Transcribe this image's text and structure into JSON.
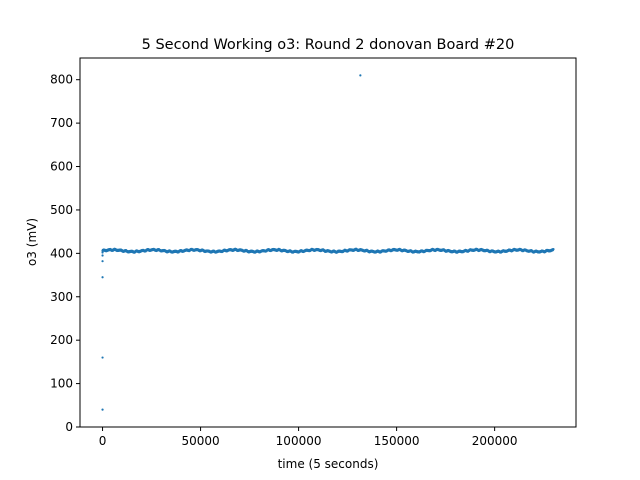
{
  "chart_data": {
    "type": "scatter",
    "title": "5 Second Working o3: Round 2 donovan Board #20",
    "xlabel": "time (5 seconds)",
    "ylabel": "o3 (mV)",
    "xlim": [
      -11500,
      241500
    ],
    "ylim": [
      0,
      850
    ],
    "xticks": [
      0,
      50000,
      100000,
      150000,
      200000
    ],
    "xtick_labels": [
      "0",
      "50000",
      "100000",
      "150000",
      "200000"
    ],
    "yticks": [
      0,
      100,
      200,
      300,
      400,
      500,
      600,
      700,
      800
    ],
    "ytick_labels": [
      "0",
      "100",
      "200",
      "300",
      "400",
      "500",
      "600",
      "700",
      "800"
    ],
    "grid": false,
    "legend": "none",
    "marker_color": "#1f77b4",
    "series": [
      {
        "x": [
          0,
          0,
          0,
          0,
          0,
          0,
          0,
          131500
        ],
        "y": [
          40,
          160,
          345,
          382,
          395,
          402,
          406,
          810
        ]
      }
    ],
    "dense_band": {
      "x_start": 0,
      "x_end": 230000,
      "y_center": 406,
      "y_spread": 3.5
    }
  }
}
